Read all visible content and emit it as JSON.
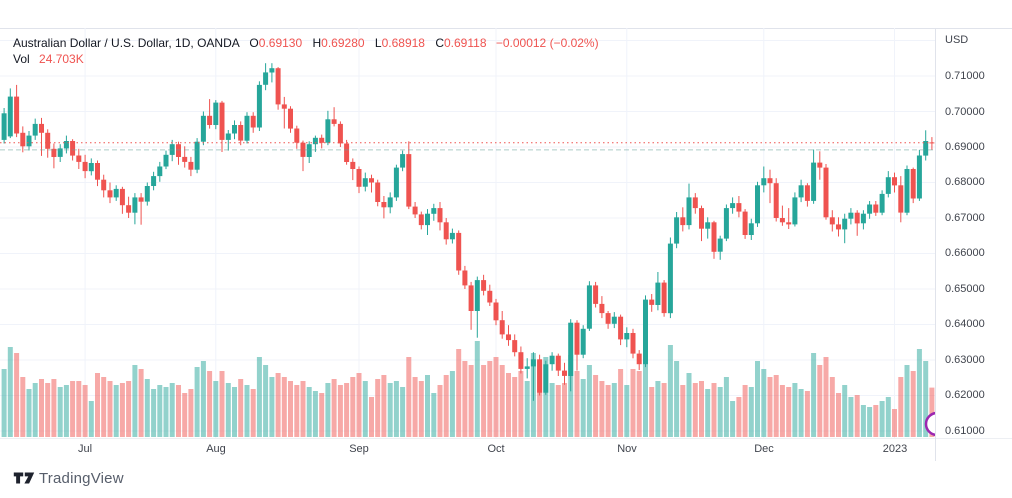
{
  "header": {
    "symbol_title": "Australian Dollar / U.S. Dollar, 1D, OANDA",
    "ohlc": {
      "o_label": "O",
      "o": "0.69130",
      "h_label": "H",
      "h": "0.69280",
      "l_label": "L",
      "l": "0.68918",
      "c_label": "C",
      "c": "0.69118",
      "change": "−0.00012 (−0.02%)"
    },
    "volume_label": "Vol",
    "volume_value": "24.703K"
  },
  "price_axis": {
    "currency_label": "USD",
    "ticks": [
      "0.71000",
      "0.70000",
      "0.69000",
      "0.68000",
      "0.67000",
      "0.66000",
      "0.65000",
      "0.64000",
      "0.63000",
      "0.62000",
      "0.61000"
    ]
  },
  "time_axis": {
    "labels": [
      {
        "text": "Jul",
        "index": 13
      },
      {
        "text": "Aug",
        "index": 34
      },
      {
        "text": "Sep",
        "index": 57
      },
      {
        "text": "Oct",
        "index": 79
      },
      {
        "text": "Nov",
        "index": 100
      },
      {
        "text": "Dec",
        "index": 122
      },
      {
        "text": "2023",
        "index": 143
      }
    ]
  },
  "footer": {
    "brand": "TradingView"
  },
  "colors": {
    "up": "#26a69a",
    "down": "#ef5350",
    "vol_up": "rgba(38,166,154,0.5)",
    "vol_down": "rgba(239,83,80,0.5)",
    "grid": "#f0f3fa",
    "axis_border": "#e0e3eb",
    "text": "#131722",
    "axis_text": "#40444d",
    "price_line": "#ef5350",
    "ref_line": "rgba(103,163,155,0.55)",
    "marker_circle": "#9c27b0"
  },
  "chart_data": {
    "type": "bar",
    "subtype": "candlestick-with-volume",
    "title": "Australian Dollar / U.S. Dollar, 1D, OANDA",
    "ylabel": "USD",
    "ylim": [
      0.61,
      0.72
    ],
    "grid": true,
    "price_line_value": 0.69118,
    "ref_line_value": 0.68918,
    "last_volume": "24.703K",
    "format": "candles: [open, high, low, close, volume_thousands]",
    "grid_prices": [
      0.72,
      0.71,
      0.7,
      0.69,
      0.68,
      0.67,
      0.66,
      0.65,
      0.64,
      0.63,
      0.62,
      0.61
    ],
    "candles": [
      [
        0.692,
        0.701,
        0.691,
        0.6995,
        34
      ],
      [
        0.693,
        0.7065,
        0.6925,
        0.7042,
        45
      ],
      [
        0.7042,
        0.7075,
        0.6928,
        0.6938,
        42
      ],
      [
        0.694,
        0.6958,
        0.6885,
        0.6902,
        30
      ],
      [
        0.6902,
        0.6945,
        0.689,
        0.6932,
        24
      ],
      [
        0.6932,
        0.698,
        0.692,
        0.6965,
        27
      ],
      [
        0.6965,
        0.6982,
        0.6875,
        0.694,
        29
      ],
      [
        0.694,
        0.695,
        0.687,
        0.6895,
        27
      ],
      [
        0.6895,
        0.691,
        0.684,
        0.6872,
        29
      ],
      [
        0.6872,
        0.6908,
        0.6858,
        0.6896,
        25
      ],
      [
        0.6896,
        0.6932,
        0.6882,
        0.6917,
        26
      ],
      [
        0.6917,
        0.6922,
        0.6862,
        0.6876,
        28
      ],
      [
        0.6876,
        0.6895,
        0.6838,
        0.6858,
        28
      ],
      [
        0.6858,
        0.6878,
        0.6812,
        0.6832,
        26
      ],
      [
        0.6832,
        0.6868,
        0.682,
        0.6855,
        18
      ],
      [
        0.6855,
        0.6862,
        0.679,
        0.6808,
        32
      ],
      [
        0.6808,
        0.6822,
        0.6758,
        0.6778,
        30
      ],
      [
        0.6778,
        0.68,
        0.6742,
        0.6758,
        28
      ],
      [
        0.6758,
        0.6792,
        0.6748,
        0.6782,
        26
      ],
      [
        0.6782,
        0.6788,
        0.6712,
        0.6736,
        27
      ],
      [
        0.6736,
        0.676,
        0.67,
        0.6715,
        28
      ],
      [
        0.6715,
        0.677,
        0.6682,
        0.6758,
        36
      ],
      [
        0.6758,
        0.677,
        0.6681,
        0.6746,
        34
      ],
      [
        0.6746,
        0.68,
        0.6735,
        0.679,
        29
      ],
      [
        0.679,
        0.683,
        0.6778,
        0.6818,
        24
      ],
      [
        0.6818,
        0.6858,
        0.6802,
        0.6845,
        26
      ],
      [
        0.6845,
        0.689,
        0.6838,
        0.6878,
        25
      ],
      [
        0.6878,
        0.692,
        0.686,
        0.6908,
        27
      ],
      [
        0.6908,
        0.6915,
        0.685,
        0.6872,
        26
      ],
      [
        0.6872,
        0.6902,
        0.6842,
        0.6858,
        22
      ],
      [
        0.6858,
        0.6872,
        0.6818,
        0.6836,
        24
      ],
      [
        0.6836,
        0.6925,
        0.6826,
        0.6915,
        35
      ],
      [
        0.6915,
        0.7,
        0.6905,
        0.6988,
        38
      ],
      [
        0.6988,
        0.7035,
        0.6952,
        0.6962,
        33
      ],
      [
        0.6962,
        0.7032,
        0.695,
        0.7025,
        28
      ],
      [
        0.7025,
        0.703,
        0.6886,
        0.692,
        33
      ],
      [
        0.692,
        0.6948,
        0.689,
        0.6938,
        27
      ],
      [
        0.6938,
        0.6975,
        0.6922,
        0.6962,
        25
      ],
      [
        0.6962,
        0.6972,
        0.6905,
        0.6918,
        29
      ],
      [
        0.6918,
        0.6998,
        0.691,
        0.6988,
        26
      ],
      [
        0.6988,
        0.6998,
        0.694,
        0.6955,
        24
      ],
      [
        0.6955,
        0.7085,
        0.6945,
        0.7075,
        40
      ],
      [
        0.7075,
        0.7136,
        0.706,
        0.711,
        36
      ],
      [
        0.711,
        0.7136,
        0.7082,
        0.7122,
        30
      ],
      [
        0.7122,
        0.7125,
        0.7005,
        0.702,
        32
      ],
      [
        0.702,
        0.7041,
        0.6952,
        0.7008,
        30
      ],
      [
        0.7008,
        0.7015,
        0.694,
        0.6952,
        28
      ],
      [
        0.6952,
        0.696,
        0.6895,
        0.6912,
        26
      ],
      [
        0.6912,
        0.6918,
        0.6832,
        0.6872,
        28
      ],
      [
        0.6872,
        0.6916,
        0.6855,
        0.6908,
        25
      ],
      [
        0.6908,
        0.6932,
        0.6886,
        0.6926,
        23
      ],
      [
        0.6926,
        0.6935,
        0.6896,
        0.6912,
        22
      ],
      [
        0.6912,
        0.7002,
        0.6905,
        0.6978,
        27
      ],
      [
        0.6978,
        0.7012,
        0.6958,
        0.6965,
        29
      ],
      [
        0.6965,
        0.6972,
        0.69,
        0.691,
        26
      ],
      [
        0.691,
        0.692,
        0.685,
        0.6858,
        27
      ],
      [
        0.6858,
        0.6868,
        0.6807,
        0.6838,
        30
      ],
      [
        0.6838,
        0.6845,
        0.677,
        0.6788,
        32
      ],
      [
        0.6788,
        0.6828,
        0.6775,
        0.6812,
        28
      ],
      [
        0.6812,
        0.6822,
        0.6772,
        0.68,
        20
      ],
      [
        0.68,
        0.6808,
        0.6733,
        0.6745,
        29
      ],
      [
        0.6745,
        0.6762,
        0.6699,
        0.673,
        31
      ],
      [
        0.673,
        0.6772,
        0.6713,
        0.6758,
        27
      ],
      [
        0.6758,
        0.685,
        0.6748,
        0.6842,
        28
      ],
      [
        0.6842,
        0.689,
        0.6832,
        0.688,
        25
      ],
      [
        0.688,
        0.6916,
        0.6725,
        0.6732,
        40
      ],
      [
        0.6732,
        0.6745,
        0.67,
        0.671,
        30
      ],
      [
        0.671,
        0.6718,
        0.6668,
        0.668,
        28
      ],
      [
        0.668,
        0.6725,
        0.6652,
        0.6712,
        31
      ],
      [
        0.6712,
        0.674,
        0.6692,
        0.6728,
        22
      ],
      [
        0.6728,
        0.6745,
        0.6665,
        0.6688,
        26
      ],
      [
        0.6688,
        0.67,
        0.6625,
        0.664,
        31
      ],
      [
        0.664,
        0.667,
        0.6628,
        0.6658,
        33
      ],
      [
        0.6658,
        0.6665,
        0.654,
        0.6552,
        44
      ],
      [
        0.6552,
        0.6565,
        0.65,
        0.651,
        38
      ],
      [
        0.651,
        0.652,
        0.6385,
        0.6438,
        36
      ],
      [
        0.6438,
        0.6535,
        0.6363,
        0.6525,
        48
      ],
      [
        0.6525,
        0.654,
        0.6482,
        0.6495,
        36
      ],
      [
        0.6495,
        0.6512,
        0.6452,
        0.6462,
        38
      ],
      [
        0.6462,
        0.6472,
        0.6398,
        0.6412,
        40
      ],
      [
        0.6412,
        0.6438,
        0.636,
        0.6372,
        36
      ],
      [
        0.6372,
        0.6398,
        0.634,
        0.6356,
        32
      ],
      [
        0.6356,
        0.6372,
        0.631,
        0.6322,
        30
      ],
      [
        0.6322,
        0.6338,
        0.6262,
        0.6275,
        33
      ],
      [
        0.6275,
        0.6305,
        0.6248,
        0.6282,
        28
      ],
      [
        0.6282,
        0.6322,
        0.6185,
        0.6302,
        42
      ],
      [
        0.6302,
        0.6315,
        0.62,
        0.6208,
        38
      ],
      [
        0.6208,
        0.6298,
        0.6202,
        0.6288,
        40
      ],
      [
        0.6288,
        0.6322,
        0.627,
        0.6312,
        27
      ],
      [
        0.6312,
        0.6318,
        0.6255,
        0.627,
        26
      ],
      [
        0.627,
        0.6292,
        0.623,
        0.6255,
        27
      ],
      [
        0.6255,
        0.6415,
        0.6212,
        0.6405,
        41
      ],
      [
        0.6405,
        0.6412,
        0.627,
        0.6315,
        33
      ],
      [
        0.6315,
        0.6398,
        0.6305,
        0.6388,
        29
      ],
      [
        0.6388,
        0.6522,
        0.6382,
        0.651,
        36
      ],
      [
        0.651,
        0.652,
        0.6448,
        0.6458,
        31
      ],
      [
        0.6458,
        0.648,
        0.6418,
        0.6432,
        28
      ],
      [
        0.6432,
        0.6438,
        0.6388,
        0.6402,
        26
      ],
      [
        0.6402,
        0.6435,
        0.639,
        0.6422,
        27
      ],
      [
        0.6422,
        0.6428,
        0.6342,
        0.6358,
        34
      ],
      [
        0.6358,
        0.6392,
        0.6336,
        0.6376,
        26
      ],
      [
        0.6376,
        0.6388,
        0.6305,
        0.6318,
        34
      ],
      [
        0.6318,
        0.6328,
        0.6272,
        0.6288,
        33
      ],
      [
        0.6288,
        0.6482,
        0.628,
        0.647,
        40
      ],
      [
        0.647,
        0.6486,
        0.6436,
        0.6455,
        25
      ],
      [
        0.6455,
        0.6548,
        0.644,
        0.6518,
        28
      ],
      [
        0.6518,
        0.6525,
        0.6422,
        0.6432,
        27
      ],
      [
        0.6432,
        0.6645,
        0.6418,
        0.6628,
        46
      ],
      [
        0.6628,
        0.6717,
        0.6615,
        0.6702,
        38
      ],
      [
        0.6702,
        0.673,
        0.6662,
        0.668,
        26
      ],
      [
        0.668,
        0.6797,
        0.6668,
        0.6758,
        32
      ],
      [
        0.6758,
        0.677,
        0.6712,
        0.6728,
        27
      ],
      [
        0.6728,
        0.6735,
        0.6635,
        0.667,
        28
      ],
      [
        0.667,
        0.6702,
        0.6642,
        0.6688,
        24
      ],
      [
        0.6688,
        0.6692,
        0.6585,
        0.6605,
        27
      ],
      [
        0.6605,
        0.665,
        0.6582,
        0.6642,
        25
      ],
      [
        0.6642,
        0.6738,
        0.6635,
        0.6728,
        30
      ],
      [
        0.6728,
        0.6758,
        0.6712,
        0.6742,
        18
      ],
      [
        0.6742,
        0.6762,
        0.6702,
        0.6718,
        20
      ],
      [
        0.6718,
        0.6725,
        0.6641,
        0.6652,
        26
      ],
      [
        0.6652,
        0.6698,
        0.6638,
        0.6685,
        25
      ],
      [
        0.6685,
        0.6802,
        0.6675,
        0.6792,
        38
      ],
      [
        0.6792,
        0.6845,
        0.6772,
        0.6812,
        34
      ],
      [
        0.6812,
        0.6836,
        0.6742,
        0.6798,
        30
      ],
      [
        0.6798,
        0.6812,
        0.669,
        0.67,
        31
      ],
      [
        0.67,
        0.6735,
        0.6678,
        0.6688,
        26
      ],
      [
        0.6688,
        0.6728,
        0.6669,
        0.6682,
        25
      ],
      [
        0.6682,
        0.6772,
        0.6676,
        0.6758,
        27
      ],
      [
        0.6758,
        0.6808,
        0.6745,
        0.6792,
        24
      ],
      [
        0.6792,
        0.6798,
        0.6732,
        0.6748,
        23
      ],
      [
        0.6748,
        0.6893,
        0.674,
        0.6856,
        42
      ],
      [
        0.6856,
        0.6888,
        0.6808,
        0.6842,
        36
      ],
      [
        0.6842,
        0.6852,
        0.6695,
        0.6702,
        40
      ],
      [
        0.6702,
        0.6722,
        0.6662,
        0.6682,
        30
      ],
      [
        0.6682,
        0.6702,
        0.6648,
        0.6668,
        22
      ],
      [
        0.6668,
        0.6712,
        0.6629,
        0.6698,
        26
      ],
      [
        0.6698,
        0.6728,
        0.6682,
        0.6715,
        20
      ],
      [
        0.6715,
        0.6722,
        0.665,
        0.6685,
        21
      ],
      [
        0.6685,
        0.6722,
        0.6668,
        0.6712,
        16
      ],
      [
        0.6712,
        0.6748,
        0.6698,
        0.6738,
        15
      ],
      [
        0.6738,
        0.6748,
        0.6706,
        0.6715,
        16
      ],
      [
        0.6715,
        0.6778,
        0.6708,
        0.6768,
        18
      ],
      [
        0.6768,
        0.6832,
        0.6758,
        0.6815,
        20
      ],
      [
        0.6815,
        0.6828,
        0.6772,
        0.6792,
        14
      ],
      [
        0.6792,
        0.6818,
        0.6688,
        0.6715,
        30
      ],
      [
        0.6715,
        0.6848,
        0.6708,
        0.6838,
        36
      ],
      [
        0.6838,
        0.6842,
        0.6742,
        0.6755,
        33
      ],
      [
        0.6755,
        0.6892,
        0.6748,
        0.6876,
        44
      ],
      [
        0.6876,
        0.6947,
        0.6862,
        0.6917,
        38
      ],
      [
        0.6913,
        0.6928,
        0.6892,
        0.6912,
        24.703
      ]
    ]
  }
}
